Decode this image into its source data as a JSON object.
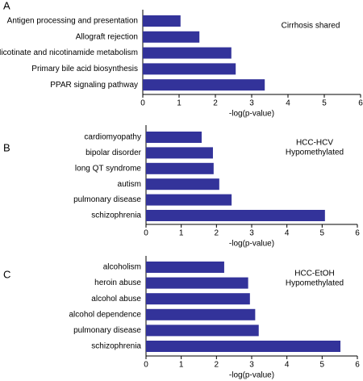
{
  "chart_data": [
    {
      "type": "bar",
      "orientation": "horizontal",
      "panel": "A",
      "annotation": [
        "Cirrhosis shared"
      ],
      "categories": [
        "Antigen processing and presentation",
        "Allograft rejection",
        "Nicotinate and nicotinamide metabolism",
        "Primary bile acid biosynthesis",
        "PPAR signaling pathway"
      ],
      "values": [
        1.04,
        1.56,
        2.44,
        2.56,
        3.36
      ],
      "color": "#33339a",
      "xlabel": "-log(p-value)",
      "xlim": [
        0,
        6
      ],
      "xticks": [
        0,
        1,
        2,
        3,
        4,
        5,
        6
      ]
    },
    {
      "type": "bar",
      "orientation": "horizontal",
      "panel": "B",
      "annotation": [
        "HCC-HCV",
        "Hypomethylated"
      ],
      "categories": [
        "cardiomyopathy",
        "bipolar disorder",
        "long QT syndrome",
        "autism",
        "pulmonary disease",
        "schizophrenia"
      ],
      "values": [
        1.58,
        1.9,
        1.92,
        2.08,
        2.43,
        5.08
      ],
      "color": "#33339a",
      "xlabel": "-log(p-value)",
      "xlim": [
        0,
        6
      ],
      "xticks": [
        0,
        1,
        2,
        3,
        4,
        5,
        6
      ]
    },
    {
      "type": "bar",
      "orientation": "horizontal",
      "panel": "C",
      "annotation": [
        "HCC-EtOH",
        "Hypomethylated"
      ],
      "categories": [
        "alcoholism",
        "heroin abuse",
        "alcohol abuse",
        "alcohol dependence",
        "pulmonary disease",
        "schizophrenia"
      ],
      "values": [
        2.22,
        2.9,
        2.95,
        3.1,
        3.2,
        5.52
      ],
      "color": "#33339a",
      "xlabel": "-log(p-value)",
      "xlim": [
        0,
        6
      ],
      "xticks": [
        0,
        1,
        2,
        3,
        4,
        5,
        6
      ]
    }
  ]
}
